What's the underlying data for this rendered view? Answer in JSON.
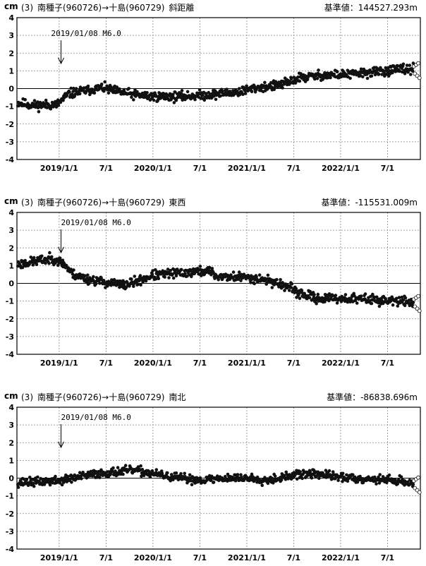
{
  "unit": "cm",
  "chart_data": [
    {
      "type": "scatter",
      "title": {
        "index": "(3)",
        "route": "南種子(960726)→十島(960729)",
        "component": "斜距離"
      },
      "reference": {
        "label": "基準値：",
        "value": "144527.293m"
      },
      "annotation": "2019/01/08 M6.0",
      "event_x": 2019.02,
      "ylim": [
        -4,
        4
      ],
      "yticks": [
        "4",
        "3",
        "2",
        "1",
        "0",
        "-1",
        "-2",
        "-3",
        "-4"
      ],
      "xlim": [
        2018.55,
        2022.85
      ],
      "xticks": [
        {
          "x": 2019.0,
          "label": "2019/1/1"
        },
        {
          "x": 2019.5,
          "label": "7/1"
        },
        {
          "x": 2020.0,
          "label": "2020/1/1"
        },
        {
          "x": 2020.5,
          "label": "7/1"
        },
        {
          "x": 2021.0,
          "label": "2021/1/1"
        },
        {
          "x": 2021.5,
          "label": "7/1"
        },
        {
          "x": 2022.0,
          "label": "2022/1/1"
        },
        {
          "x": 2022.5,
          "label": "7/1"
        }
      ],
      "trend": [
        [
          2018.55,
          -0.8
        ],
        [
          2018.75,
          -0.95
        ],
        [
          2018.98,
          -0.9
        ],
        [
          2019.1,
          -0.3
        ],
        [
          2019.3,
          -0.1
        ],
        [
          2019.45,
          0.05
        ],
        [
          2019.6,
          -0.15
        ],
        [
          2019.8,
          -0.35
        ],
        [
          2020.0,
          -0.45
        ],
        [
          2020.3,
          -0.45
        ],
        [
          2020.6,
          -0.35
        ],
        [
          2020.9,
          -0.2
        ],
        [
          2021.1,
          0.05
        ],
        [
          2021.3,
          0.15
        ],
        [
          2021.45,
          0.35
        ],
        [
          2021.55,
          0.6
        ],
        [
          2021.8,
          0.75
        ],
        [
          2022.1,
          0.8
        ],
        [
          2022.4,
          0.95
        ],
        [
          2022.6,
          1.05
        ],
        [
          2022.78,
          1.1
        ]
      ],
      "noise": 0.22,
      "seed": 11
    },
    {
      "type": "scatter",
      "title": {
        "index": "(3)",
        "route": "南種子(960726)→十島(960729)",
        "component": "東西"
      },
      "reference": {
        "label": "基準値：",
        "value": "-115531.009m"
      },
      "annotation": "2019/01/08 M6.0",
      "event_x": 2019.02,
      "ylim": [
        -4,
        4
      ],
      "yticks": [
        "4",
        "3",
        "2",
        "1",
        "0",
        "-1",
        "-2",
        "-3",
        "-4"
      ],
      "xlim": [
        2018.55,
        2022.85
      ],
      "xticks": [
        {
          "x": 2019.0,
          "label": "2019/1/1"
        },
        {
          "x": 2019.5,
          "label": "7/1"
        },
        {
          "x": 2020.0,
          "label": "2020/1/1"
        },
        {
          "x": 2020.5,
          "label": "7/1"
        },
        {
          "x": 2021.0,
          "label": "2021/1/1"
        },
        {
          "x": 2021.5,
          "label": "7/1"
        },
        {
          "x": 2022.0,
          "label": "2022/1/1"
        },
        {
          "x": 2022.5,
          "label": "7/1"
        }
      ],
      "trend": [
        [
          2018.55,
          1.05
        ],
        [
          2018.75,
          1.25
        ],
        [
          2018.95,
          1.4
        ],
        [
          2019.05,
          1.1
        ],
        [
          2019.15,
          0.5
        ],
        [
          2019.3,
          0.25
        ],
        [
          2019.5,
          0.05
        ],
        [
          2019.7,
          -0.1
        ],
        [
          2019.85,
          0.15
        ],
        [
          2020.0,
          0.45
        ],
        [
          2020.2,
          0.55
        ],
        [
          2020.45,
          0.65
        ],
        [
          2020.6,
          0.7
        ],
        [
          2020.68,
          0.4
        ],
        [
          2020.85,
          0.35
        ],
        [
          2021.0,
          0.35
        ],
        [
          2021.2,
          0.2
        ],
        [
          2021.4,
          -0.1
        ],
        [
          2021.55,
          -0.55
        ],
        [
          2021.75,
          -0.85
        ],
        [
          2022.0,
          -0.85
        ],
        [
          2022.3,
          -0.9
        ],
        [
          2022.55,
          -1.0
        ],
        [
          2022.78,
          -1.05
        ]
      ],
      "noise": 0.22,
      "seed": 23
    },
    {
      "type": "scatter",
      "title": {
        "index": "(3)",
        "route": "南種子(960726)→十島(960729)",
        "component": "南北"
      },
      "reference": {
        "label": "基準値：",
        "value": "-86838.696m"
      },
      "annotation": "2019/01/08 M6.0",
      "event_x": 2019.02,
      "ylim": [
        -4,
        4
      ],
      "yticks": [
        "4",
        "3",
        "2",
        "1",
        "0",
        "-1",
        "-2",
        "-3",
        "-4"
      ],
      "xlim": [
        2018.55,
        2022.85
      ],
      "xticks": [
        {
          "x": 2019.0,
          "label": "2019/1/1"
        },
        {
          "x": 2019.5,
          "label": "7/1"
        },
        {
          "x": 2020.0,
          "label": "2020/1/1"
        },
        {
          "x": 2020.5,
          "label": "7/1"
        },
        {
          "x": 2021.0,
          "label": "2021/1/1"
        },
        {
          "x": 2021.5,
          "label": "7/1"
        },
        {
          "x": 2022.0,
          "label": "2022/1/1"
        },
        {
          "x": 2022.5,
          "label": "7/1"
        }
      ],
      "trend": [
        [
          2018.55,
          -0.25
        ],
        [
          2018.8,
          -0.2
        ],
        [
          2019.0,
          -0.15
        ],
        [
          2019.2,
          0.05
        ],
        [
          2019.4,
          0.25
        ],
        [
          2019.6,
          0.35
        ],
        [
          2019.8,
          0.45
        ],
        [
          2019.95,
          0.3
        ],
        [
          2020.2,
          0.05
        ],
        [
          2020.5,
          -0.1
        ],
        [
          2020.8,
          0.0
        ],
        [
          2021.0,
          0.0
        ],
        [
          2021.2,
          -0.1
        ],
        [
          2021.4,
          0.05
        ],
        [
          2021.55,
          0.2
        ],
        [
          2021.75,
          0.25
        ],
        [
          2022.0,
          0.05
        ],
        [
          2022.3,
          -0.05
        ],
        [
          2022.55,
          -0.1
        ],
        [
          2022.78,
          -0.3
        ]
      ],
      "noise": 0.2,
      "seed": 37
    }
  ]
}
